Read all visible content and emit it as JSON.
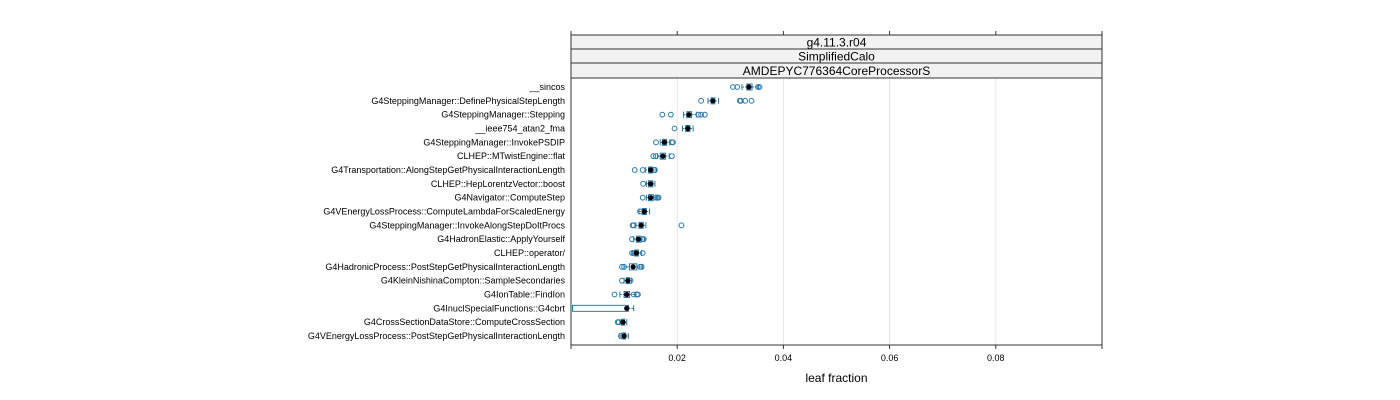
{
  "chart_data": {
    "type": "boxplot",
    "strips": [
      "g4.11.3.r04",
      "SimplifiedCalo",
      "AMDEPYC776364CoreProcessorS"
    ],
    "xlabel": "leaf fraction",
    "xlim": [
      0,
      0.1
    ],
    "xticks": [
      0.02,
      0.04,
      0.06,
      0.08
    ],
    "xtick_labels": [
      "0.02",
      "0.04",
      "0.06",
      "0.08"
    ],
    "grid": true,
    "colors": {
      "box": "#2a7aa8",
      "outlier": "#2a7aa8",
      "median": "#000000",
      "strip_bg": "#f2f2f2",
      "grid": "#e6e6e6"
    },
    "categories": [
      "__sincos",
      "G4SteppingManager::DefinePhysicalStepLength",
      "G4SteppingManager::Stepping",
      "__ieee754_atan2_fma",
      "G4SteppingManager::InvokePSDIP",
      "CLHEP::MTwistEngine::flat",
      "G4Transportation::AlongStepGetPhysicalInteractionLength",
      "CLHEP::HepLorentzVector::boost",
      "G4Navigator::ComputeStep",
      "G4VEnergyLossProcess::ComputeLambdaForScaledEnergy",
      "G4SteppingManager::InvokeAlongStepDoItProcs",
      "G4HadronElastic::ApplyYourself",
      "CLHEP::operator/",
      "G4HadronicProcess::PostStepGetPhysicalInteractionLength",
      "G4KleinNishinaCompton::SampleSecondaries",
      "G4IonTable::FindIon",
      "G4InuclSpecialFunctions::G4cbrt",
      "G4CrossSectionDataStore::ComputeCrossSection",
      "G4VEnergyLossProcess::PostStepGetPhysicalInteractionLength"
    ],
    "boxes": [
      {
        "lw": 0.0322,
        "q1": 0.0331,
        "median": 0.0335,
        "q3": 0.0341,
        "uw": 0.0353,
        "outliers": [
          0.0305,
          0.0313,
          0.0352,
          0.0355
        ]
      },
      {
        "lw": 0.0258,
        "q1": 0.0264,
        "median": 0.0267,
        "q3": 0.0271,
        "uw": 0.0278,
        "outliers": [
          0.0245,
          0.0318,
          0.032,
          0.0328,
          0.034
        ]
      },
      {
        "lw": 0.0212,
        "q1": 0.0218,
        "median": 0.0222,
        "q3": 0.0227,
        "uw": 0.0236,
        "outliers": [
          0.0172,
          0.0188,
          0.024,
          0.0245,
          0.0252
        ]
      },
      {
        "lw": 0.021,
        "q1": 0.0216,
        "median": 0.022,
        "q3": 0.0224,
        "uw": 0.023,
        "outliers": [
          0.0195
        ]
      },
      {
        "lw": 0.0168,
        "q1": 0.0172,
        "median": 0.0176,
        "q3": 0.018,
        "uw": 0.0186,
        "outliers": [
          0.016,
          0.019,
          0.0192
        ]
      },
      {
        "lw": 0.0163,
        "q1": 0.0168,
        "median": 0.0173,
        "q3": 0.0178,
        "uw": 0.0185,
        "outliers": [
          0.0155,
          0.016,
          0.019
        ]
      },
      {
        "lw": 0.014,
        "q1": 0.0146,
        "median": 0.015,
        "q3": 0.0154,
        "uw": 0.016,
        "outliers": [
          0.012,
          0.0135,
          0.0157,
          0.0158
        ]
      },
      {
        "lw": 0.0142,
        "q1": 0.0146,
        "median": 0.015,
        "q3": 0.0154,
        "uw": 0.0158,
        "outliers": [
          0.0136
        ]
      },
      {
        "lw": 0.0142,
        "q1": 0.0146,
        "median": 0.015,
        "q3": 0.0155,
        "uw": 0.0162,
        "outliers": [
          0.0135,
          0.016,
          0.0163,
          0.0165
        ]
      },
      {
        "lw": 0.0128,
        "q1": 0.0134,
        "median": 0.0138,
        "q3": 0.0142,
        "uw": 0.0148,
        "outliers": [
          0.013
        ]
      },
      {
        "lw": 0.0122,
        "q1": 0.0128,
        "median": 0.0132,
        "q3": 0.0136,
        "uw": 0.0141,
        "outliers": [
          0.0116,
          0.0118,
          0.0208
        ]
      },
      {
        "lw": 0.0118,
        "q1": 0.0123,
        "median": 0.0127,
        "q3": 0.0132,
        "uw": 0.0138,
        "outliers": [
          0.0115,
          0.0135,
          0.0137
        ]
      },
      {
        "lw": 0.0116,
        "q1": 0.012,
        "median": 0.0123,
        "q3": 0.0127,
        "uw": 0.0133,
        "outliers": [
          0.0115,
          0.0118,
          0.0135
        ]
      },
      {
        "lw": 0.01,
        "q1": 0.011,
        "median": 0.0117,
        "q3": 0.0124,
        "uw": 0.0135,
        "outliers": [
          0.0096,
          0.01,
          0.013,
          0.0133
        ]
      },
      {
        "lw": 0.01,
        "q1": 0.0104,
        "median": 0.0107,
        "q3": 0.011,
        "uw": 0.0114,
        "outliers": [
          0.0096,
          0.0112
        ]
      },
      {
        "lw": 0.0092,
        "q1": 0.01,
        "median": 0.0105,
        "q3": 0.011,
        "uw": 0.0122,
        "outliers": [
          0.0082,
          0.0118,
          0.0124,
          0.0126
        ]
      },
      {
        "lw": 0.0003,
        "q1": 0.0003,
        "median": 0.0105,
        "q3": 0.0108,
        "uw": 0.0118,
        "outliers": []
      },
      {
        "lw": 0.0092,
        "q1": 0.0095,
        "median": 0.0098,
        "q3": 0.0101,
        "uw": 0.0105,
        "outliers": [
          0.0088,
          0.009
        ]
      },
      {
        "lw": 0.0092,
        "q1": 0.0096,
        "median": 0.01,
        "q3": 0.0103,
        "uw": 0.0108,
        "outliers": [
          0.0094
        ]
      }
    ]
  }
}
